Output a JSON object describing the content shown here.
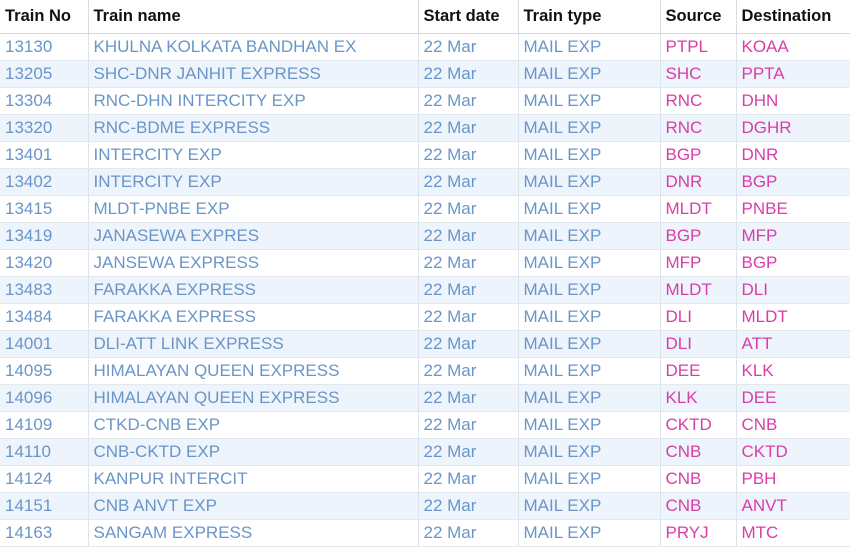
{
  "table": {
    "header": [
      "Train No",
      "Train name",
      "Start date",
      "Train type",
      "Source",
      "Destination"
    ],
    "rows": [
      [
        "13130",
        "KHULNA KOLKATA BANDHAN EX",
        "22 Mar",
        "MAIL EXP",
        "PTPL",
        "KOAA"
      ],
      [
        "13205",
        "SHC-DNR JANHIT EXPRESS",
        "22 Mar",
        "MAIL EXP",
        "SHC",
        "PPTA"
      ],
      [
        "13304",
        "RNC-DHN INTERCITY EXP",
        "22 Mar",
        "MAIL EXP",
        "RNC",
        "DHN"
      ],
      [
        "13320",
        "RNC-BDME EXPRESS",
        "22 Mar",
        "MAIL EXP",
        "RNC",
        "DGHR"
      ],
      [
        "13401",
        "INTERCITY EXP",
        "22 Mar",
        "MAIL EXP",
        "BGP",
        "DNR"
      ],
      [
        "13402",
        "INTERCITY EXP",
        "22 Mar",
        "MAIL EXP",
        "DNR",
        "BGP"
      ],
      [
        "13415",
        "MLDT-PNBE EXP",
        "22 Mar",
        "MAIL EXP",
        "MLDT",
        "PNBE"
      ],
      [
        "13419",
        "JANASEWA EXPRES",
        "22 Mar",
        "MAIL EXP",
        "BGP",
        "MFP"
      ],
      [
        "13420",
        "JANSEWA EXPRESS",
        "22 Mar",
        "MAIL EXP",
        "MFP",
        "BGP"
      ],
      [
        "13483",
        "FARAKKA EXPRESS",
        "22 Mar",
        "MAIL EXP",
        "MLDT",
        "DLI"
      ],
      [
        "13484",
        "FARAKKA EXPRESS",
        "22 Mar",
        "MAIL EXP",
        "DLI",
        "MLDT"
      ],
      [
        "14001",
        "DLI-ATT LINK EXPRESS",
        "22 Mar",
        "MAIL EXP",
        "DLI",
        "ATT"
      ],
      [
        "14095",
        "HIMALAYAN QUEEN EXPRESS",
        "22 Mar",
        "MAIL EXP",
        "DEE",
        "KLK"
      ],
      [
        "14096",
        "HIMALAYAN QUEEN EXPRESS",
        "22 Mar",
        "MAIL EXP",
        "KLK",
        "DEE"
      ],
      [
        "14109",
        "CTKD-CNB EXP",
        "22 Mar",
        "MAIL EXP",
        "CKTD",
        "CNB"
      ],
      [
        "14110",
        "CNB-CKTD EXP",
        "22 Mar",
        "MAIL EXP",
        "CNB",
        "CKTD"
      ],
      [
        "14124",
        "KANPUR INTERCIT",
        "22 Mar",
        "MAIL EXP",
        "CNB",
        "PBH"
      ],
      [
        "14151",
        "CNB ANVT EXP",
        "22 Mar",
        "MAIL EXP",
        "CNB",
        "ANVT"
      ],
      [
        "14163",
        "SANGAM EXPRESS",
        "22 Mar",
        "MAIL EXP",
        "PRYJ",
        "MTC"
      ]
    ]
  }
}
